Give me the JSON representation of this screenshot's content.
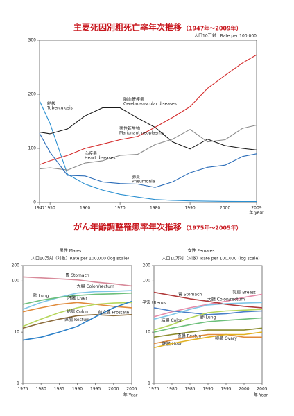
{
  "chart_data": [
    {
      "type": "line",
      "title": "主要死因別粗死亡率年次推移",
      "subtitle": "（1947年〜2009年）",
      "y_label": "人口10万対　Rate per 100,000",
      "x_label": "年 year",
      "x": [
        1947,
        1950,
        1955,
        1960,
        1965,
        1970,
        1975,
        1980,
        1985,
        1990,
        1995,
        2000,
        2005,
        2009
      ],
      "xlim": [
        1947,
        2009
      ],
      "xticks": [
        1947,
        1950,
        1960,
        1970,
        1980,
        1990,
        2000,
        2009
      ],
      "ylim": [
        0,
        300
      ],
      "yticks": [
        0,
        100,
        200,
        300
      ],
      "log": false,
      "series": [
        {
          "name": "結核",
          "name_en": "Tuberculosis",
          "color": "#2a8fd0",
          "values": [
            188,
            146,
            52,
            34,
            23,
            15,
            10,
            5.5,
            4,
            3,
            2.5,
            2,
            1.8,
            1.8
          ]
        },
        {
          "name": "脳血管疾患",
          "name_en": "Cerebrovascular diseases",
          "color": "#1a1a1a",
          "values": [
            130,
            127,
            136,
            160,
            175,
            175,
            156,
            139,
            112,
            99,
            117,
            105,
            100,
            97
          ]
        },
        {
          "name": "悪性新生物",
          "name_en": "Malignant neoplasms",
          "color": "#d42a2a",
          "values": [
            70,
            77,
            87,
            100,
            108,
            116,
            122,
            139,
            157,
            177,
            211,
            235,
            258,
            273
          ]
        },
        {
          "name": "心疾患",
          "name_en": "Heart diseases",
          "color": "#8a8a8a",
          "values": [
            62,
            64,
            60,
            73,
            77,
            87,
            89,
            107,
            117,
            135,
            112,
            116,
            137,
            143
          ]
        },
        {
          "name": "肺炎",
          "name_en": "Pneumonia",
          "color": "#2a6cb8",
          "values": [
            128,
            93,
            50,
            49,
            38,
            35,
            34,
            28,
            38,
            55,
            65,
            69,
            85,
            90
          ]
        }
      ]
    },
    {
      "type": "line",
      "title": "男性 Males",
      "y_label": "人口10万対（対数）Rate per 100,000 (log scale)",
      "x_label": "年 Year",
      "x": [
        1975,
        1980,
        1985,
        1990,
        1995,
        2000,
        2005
      ],
      "xlim": [
        1975,
        2005
      ],
      "xticks": [
        1975,
        1980,
        1985,
        1990,
        1995,
        2000,
        2005
      ],
      "ylim": [
        1,
        200
      ],
      "yticks": [
        1,
        10,
        100,
        200
      ],
      "log": true,
      "series": [
        {
          "name": "胃 Stomach",
          "color": "#d88a9a",
          "values": [
            120,
            115,
            110,
            105,
            95,
            88,
            80
          ]
        },
        {
          "name": "大腸 Colon/rectum",
          "color": "#7fc6e6",
          "values": [
            28,
            38,
            48,
            58,
            62,
            63,
            65
          ]
        },
        {
          "name": "肺 Lung",
          "color": "#6cbf7a",
          "values": [
            35,
            42,
            48,
            52,
            55,
            56,
            58
          ]
        },
        {
          "name": "肝臓 Liver",
          "color": "#e08a3a",
          "values": [
            25,
            30,
            35,
            38,
            35,
            32,
            30
          ]
        },
        {
          "name": "結腸 Colon",
          "color": "#b5d65a",
          "values": [
            13,
            18,
            24,
            30,
            35,
            37,
            38
          ]
        },
        {
          "name": "直腸 Rectum",
          "color": "#8a6a3a",
          "values": [
            12,
            15,
            18,
            21,
            22,
            21,
            22
          ]
        },
        {
          "name": "前立腺 Prostate",
          "color": "#2a7fc8",
          "values": [
            7,
            8,
            10,
            13,
            20,
            30,
            40
          ]
        }
      ]
    },
    {
      "type": "line",
      "title": "女性 Females",
      "y_label": "人口10万対（対数）Rate per 100,000 (log scale)",
      "x_label": "年 Year",
      "x": [
        1975,
        1980,
        1985,
        1990,
        1995,
        2000,
        2005
      ],
      "xlim": [
        1975,
        2005
      ],
      "xticks": [
        1975,
        1980,
        1985,
        1990,
        1995,
        2000,
        2005
      ],
      "ylim": [
        1,
        200
      ],
      "yticks": [
        1,
        10,
        100,
        200
      ],
      "log": true,
      "series": [
        {
          "name": "乳房 Breast",
          "color": "#e58aa8",
          "values": [
            20,
            25,
            30,
            35,
            40,
            48,
            55
          ]
        },
        {
          "name": "胃 Stomach",
          "color": "#b03a3a",
          "values": [
            60,
            52,
            45,
            40,
            35,
            32,
            30
          ]
        },
        {
          "name": "子宮 Uterus",
          "color": "#4a7fc8",
          "values": [
            30,
            26,
            24,
            22,
            23,
            25,
            26
          ]
        },
        {
          "name": "大腸 Colon/rectum",
          "color": "#7fc6e6",
          "values": [
            18,
            22,
            28,
            34,
            36,
            37,
            38
          ]
        },
        {
          "name": "結腸 Colon",
          "color": "#b5d65a",
          "values": [
            11,
            14,
            19,
            24,
            26,
            27,
            28
          ]
        },
        {
          "name": "肺 Lung",
          "color": "#6cbf7a",
          "values": [
            10,
            12,
            14,
            16,
            17,
            18,
            19
          ]
        },
        {
          "name": "直腸 Rectum",
          "color": "#8a8a2a",
          "values": [
            8,
            9,
            10,
            11,
            11,
            11,
            12
          ]
        },
        {
          "name": "肝臓 Liver",
          "color": "#e08a3a",
          "values": [
            6,
            7,
            8,
            9,
            9,
            8,
            8
          ]
        },
        {
          "name": "卵巣 Ovary",
          "color": "#e0b020",
          "values": [
            5,
            6,
            7,
            8,
            9,
            9,
            10
          ]
        }
      ]
    }
  ],
  "section": {
    "title": "がん年齢調整罹患率年次推移",
    "subtitle": "（1975年〜2005年）"
  }
}
